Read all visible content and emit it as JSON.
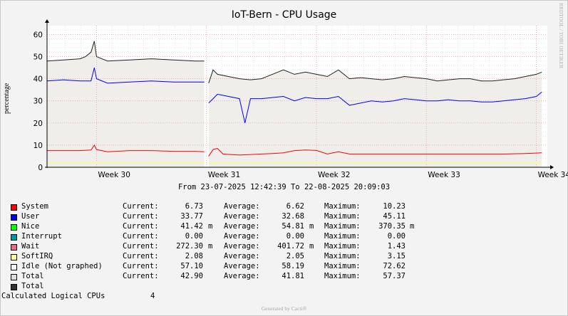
{
  "chart_data": {
    "type": "line",
    "title": "IoT-Bern - CPU Usage",
    "ylabel": "percentage",
    "ylim": [
      0,
      64
    ],
    "yticks": [
      0,
      10,
      20,
      30,
      40,
      50,
      60
    ],
    "xlim": [
      29.55,
      34.1
    ],
    "xticks": [
      {
        "value": 30,
        "label": "Week 30"
      },
      {
        "value": 31,
        "label": "Week 31"
      },
      {
        "value": 32,
        "label": "Week 32"
      },
      {
        "value": 33,
        "label": "Week 33"
      },
      {
        "value": 34,
        "label": "Week 34"
      }
    ],
    "grid": true,
    "gap": [
      30.98,
      31.02
    ],
    "series": [
      {
        "name": "Total",
        "color": "#222222",
        "points": [
          [
            29.55,
            48
          ],
          [
            29.7,
            48.5
          ],
          [
            29.85,
            49
          ],
          [
            29.9,
            50
          ],
          [
            29.95,
            52
          ],
          [
            29.98,
            57
          ],
          [
            30.0,
            50
          ],
          [
            30.1,
            48
          ],
          [
            30.3,
            48.5
          ],
          [
            30.5,
            49
          ],
          [
            30.7,
            48.5
          ],
          [
            30.9,
            48
          ],
          [
            30.98,
            48
          ],
          [
            31.02,
            38
          ],
          [
            31.06,
            44
          ],
          [
            31.1,
            42
          ],
          [
            31.2,
            41
          ],
          [
            31.3,
            40
          ],
          [
            31.4,
            39.5
          ],
          [
            31.5,
            40
          ],
          [
            31.6,
            42
          ],
          [
            31.7,
            44
          ],
          [
            31.8,
            42
          ],
          [
            31.9,
            43
          ],
          [
            32.0,
            42
          ],
          [
            32.1,
            41
          ],
          [
            32.2,
            44
          ],
          [
            32.3,
            40
          ],
          [
            32.4,
            40.5
          ],
          [
            32.5,
            40
          ],
          [
            32.6,
            39.5
          ],
          [
            32.7,
            40
          ],
          [
            32.8,
            41
          ],
          [
            32.9,
            40.5
          ],
          [
            33.0,
            40
          ],
          [
            33.1,
            39
          ],
          [
            33.2,
            39.5
          ],
          [
            33.3,
            40
          ],
          [
            33.4,
            40
          ],
          [
            33.5,
            39
          ],
          [
            33.6,
            39
          ],
          [
            33.7,
            39.5
          ],
          [
            33.8,
            40
          ],
          [
            33.9,
            41
          ],
          [
            34.0,
            42
          ],
          [
            34.05,
            43
          ]
        ]
      },
      {
        "name": "User",
        "color": "#0000ff",
        "points": [
          [
            29.55,
            39
          ],
          [
            29.7,
            39.5
          ],
          [
            29.85,
            39
          ],
          [
            29.95,
            39
          ],
          [
            29.98,
            45
          ],
          [
            30.0,
            40
          ],
          [
            30.1,
            38
          ],
          [
            30.3,
            38.5
          ],
          [
            30.5,
            39
          ],
          [
            30.7,
            38.5
          ],
          [
            30.9,
            38.5
          ],
          [
            30.98,
            38.5
          ],
          [
            31.02,
            29
          ],
          [
            31.06,
            31
          ],
          [
            31.1,
            33
          ],
          [
            31.2,
            32
          ],
          [
            31.3,
            31
          ],
          [
            31.35,
            20
          ],
          [
            31.4,
            31
          ],
          [
            31.5,
            31
          ],
          [
            31.6,
            31.5
          ],
          [
            31.7,
            32
          ],
          [
            31.8,
            30
          ],
          [
            31.9,
            31.5
          ],
          [
            32.0,
            31
          ],
          [
            32.1,
            31
          ],
          [
            32.2,
            32
          ],
          [
            32.3,
            28
          ],
          [
            32.4,
            29
          ],
          [
            32.5,
            30
          ],
          [
            32.6,
            29.5
          ],
          [
            32.7,
            30
          ],
          [
            32.8,
            31
          ],
          [
            32.9,
            30.5
          ],
          [
            33.0,
            30
          ],
          [
            33.1,
            30
          ],
          [
            33.2,
            30.5
          ],
          [
            33.3,
            30
          ],
          [
            33.4,
            30
          ],
          [
            33.5,
            29.5
          ],
          [
            33.6,
            29.5
          ],
          [
            33.7,
            30
          ],
          [
            33.8,
            30.5
          ],
          [
            33.9,
            31
          ],
          [
            34.0,
            32
          ],
          [
            34.05,
            34
          ]
        ]
      },
      {
        "name": "System",
        "color": "#ff0000",
        "points": [
          [
            29.55,
            7.5
          ],
          [
            29.7,
            7.5
          ],
          [
            29.85,
            7.5
          ],
          [
            29.95,
            7.8
          ],
          [
            29.98,
            10
          ],
          [
            30.0,
            8
          ],
          [
            30.1,
            7
          ],
          [
            30.3,
            7.5
          ],
          [
            30.5,
            7.5
          ],
          [
            30.7,
            7.2
          ],
          [
            30.9,
            7.2
          ],
          [
            30.98,
            7
          ],
          [
            31.02,
            5
          ],
          [
            31.06,
            8
          ],
          [
            31.1,
            8.5
          ],
          [
            31.15,
            6
          ],
          [
            31.3,
            5.5
          ],
          [
            31.5,
            6
          ],
          [
            31.6,
            6.2
          ],
          [
            31.7,
            6.5
          ],
          [
            31.8,
            7.5
          ],
          [
            31.9,
            7.8
          ],
          [
            32.0,
            7.6
          ],
          [
            32.1,
            6
          ],
          [
            32.2,
            7
          ],
          [
            32.3,
            6
          ],
          [
            32.5,
            6
          ],
          [
            32.7,
            6
          ],
          [
            32.9,
            6
          ],
          [
            33.1,
            6
          ],
          [
            33.3,
            6
          ],
          [
            33.5,
            6
          ],
          [
            33.7,
            6
          ],
          [
            33.9,
            6.2
          ],
          [
            34.05,
            6.5
          ]
        ]
      },
      {
        "name": "SoftIRQ",
        "color": "#ffff66",
        "points": [
          [
            29.55,
            2.1
          ],
          [
            30.98,
            2.1
          ],
          [
            31.02,
            2.0
          ],
          [
            34.05,
            2.1
          ]
        ]
      }
    ]
  },
  "daterange": "From 23-07-2025 12:42:39 To 22-08-2025 20:09:03",
  "watermark": "RRDTOOL / TOBI OETIKER",
  "legend": [
    {
      "name": "System",
      "color": "#ff0000",
      "current": "6.73",
      "cur_unit": "",
      "average": "6.62",
      "avg_unit": "",
      "maximum": "10.23",
      "max_unit": ""
    },
    {
      "name": "User",
      "color": "#0000ff",
      "current": "33.77",
      "cur_unit": "",
      "average": "32.68",
      "avg_unit": "",
      "maximum": "45.11",
      "max_unit": ""
    },
    {
      "name": "Nice",
      "color": "#00ff00",
      "current": "41.42",
      "cur_unit": "m",
      "average": "54.81",
      "avg_unit": "m",
      "maximum": "370.35",
      "max_unit": "m"
    },
    {
      "name": "Interrupt",
      "color": "#009999",
      "current": "0.00",
      "cur_unit": "",
      "average": "0.00",
      "avg_unit": "",
      "maximum": "0.00",
      "max_unit": ""
    },
    {
      "name": "Wait",
      "color": "#ee6688",
      "current": "272.30",
      "cur_unit": "m",
      "average": "401.72",
      "avg_unit": "m",
      "maximum": "1.43",
      "max_unit": ""
    },
    {
      "name": "SoftIRQ",
      "color": "#ffff99",
      "current": "2.08",
      "cur_unit": "",
      "average": "2.05",
      "avg_unit": "",
      "maximum": "3.15",
      "max_unit": ""
    },
    {
      "name": "Idle (Not graphed)",
      "color": "#f4f4f4",
      "current": "57.10",
      "cur_unit": "",
      "average": "58.19",
      "avg_unit": "",
      "maximum": "72.62",
      "max_unit": ""
    },
    {
      "name": "Total",
      "color": "#dddddd",
      "current": "42.90",
      "cur_unit": "",
      "average": "41.81",
      "avg_unit": "",
      "maximum": "57.37",
      "max_unit": ""
    },
    {
      "name": "Total",
      "color": "#333333"
    }
  ],
  "legend_labels": {
    "current": "Current:",
    "average": "Average:",
    "maximum": "Maximum:"
  },
  "cpus": {
    "label": "Calculated Logical CPUs",
    "value": "4"
  },
  "generated": "Generated by Cacti®"
}
